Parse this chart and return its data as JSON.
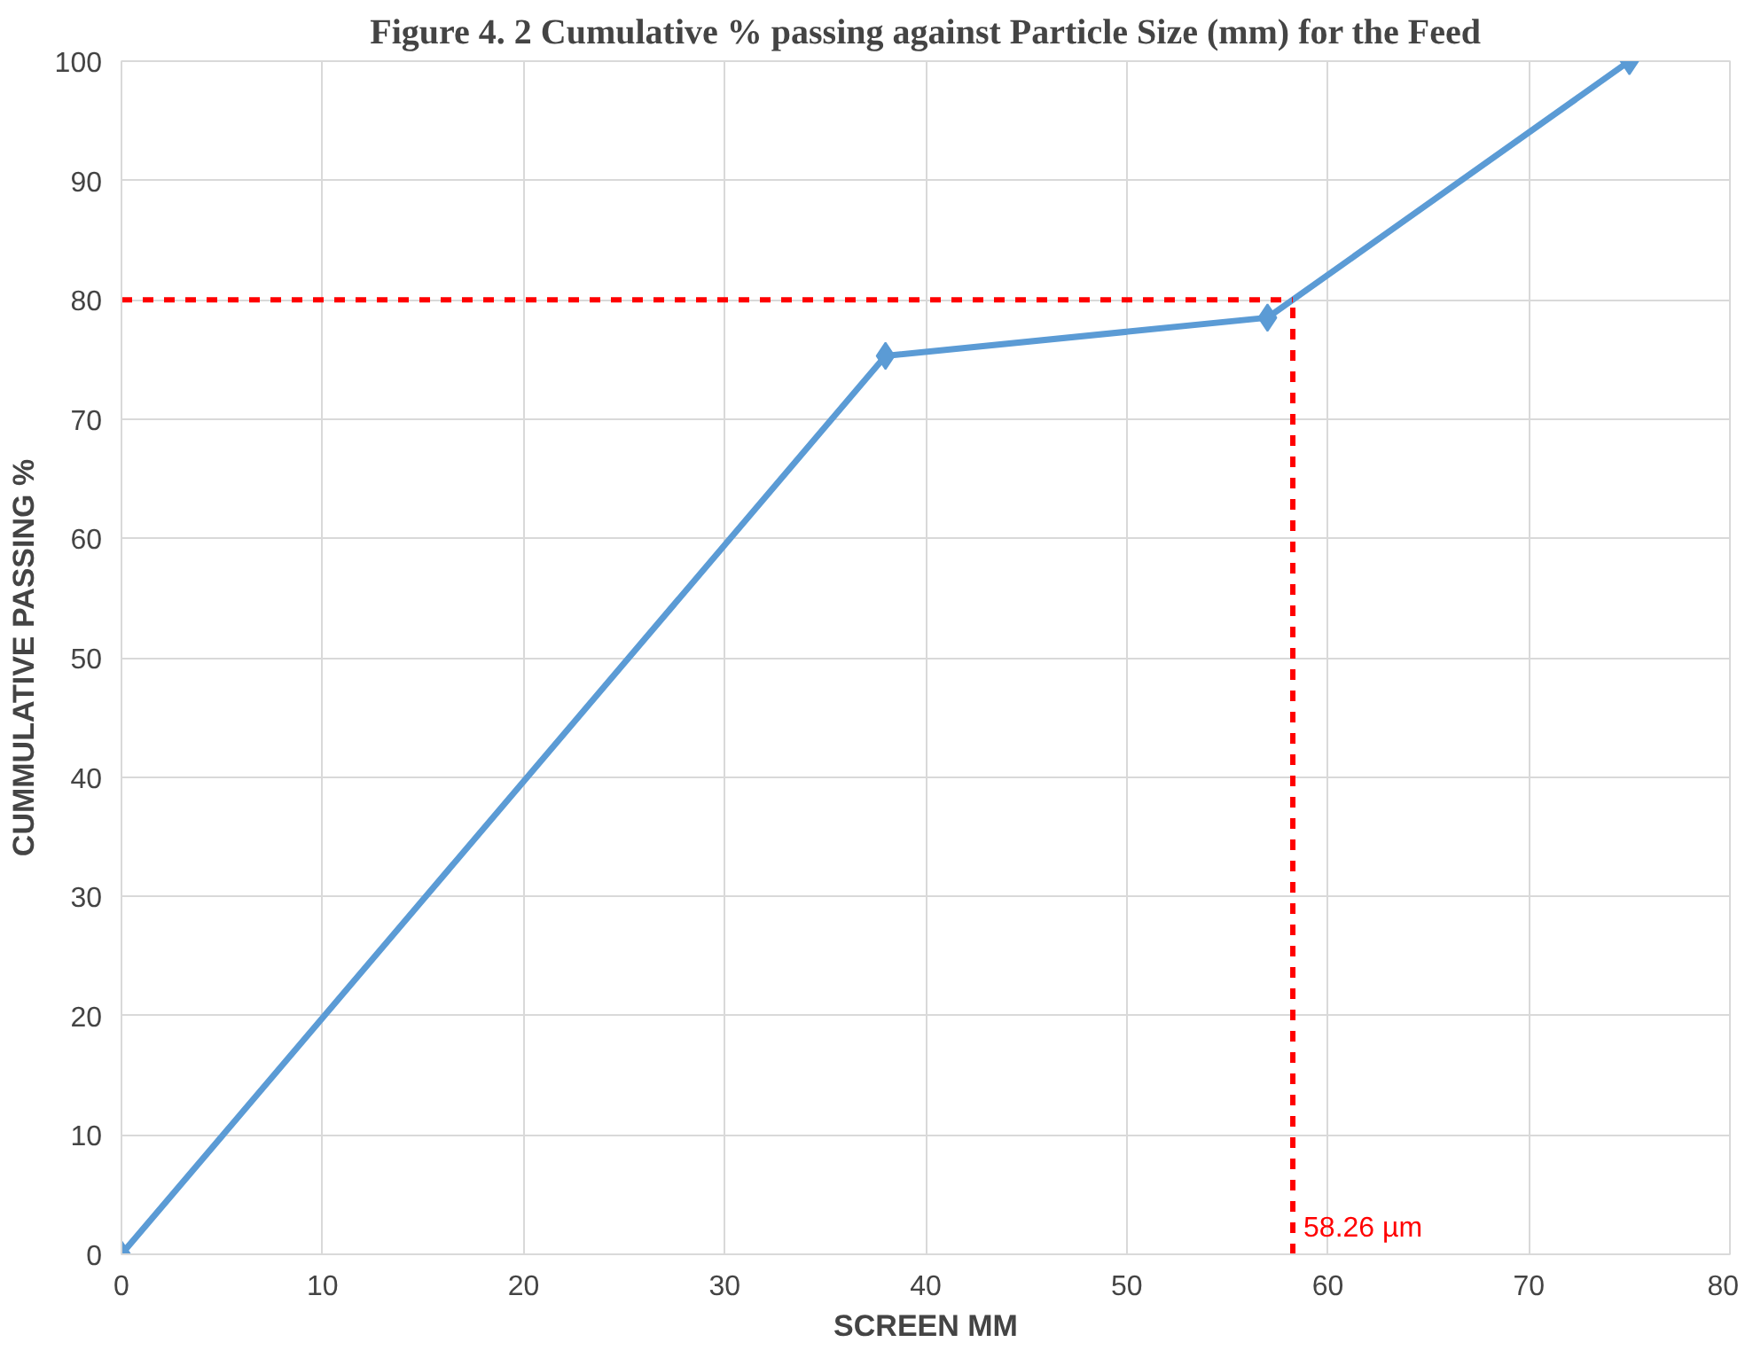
{
  "chart_data": {
    "type": "line",
    "title": "Figure 4. 2 Cumulative % passing against Particle Size (mm) for the Feed",
    "xlabel": "SCREEN MM",
    "ylabel": "CUMMULATIVE PASSING %",
    "x": [
      0,
      38,
      57,
      75
    ],
    "series": [
      {
        "color": "#5b9bd5",
        "values": [
          0,
          75.3,
          78.5,
          100
        ]
      }
    ],
    "marker": "diamond",
    "line_style": "solid",
    "grid": true,
    "xlim": [
      0,
      80
    ],
    "xticks": [
      0,
      10,
      20,
      30,
      40,
      50,
      60,
      70,
      80
    ],
    "ylim": [
      0,
      100
    ],
    "yticks": [
      0,
      10,
      20,
      30,
      40,
      50,
      60,
      70,
      80,
      90,
      100
    ],
    "ref_lines": [
      {
        "axis": "y",
        "value": 80,
        "color": "#ff0000",
        "line_style": "dashed"
      },
      {
        "axis": "x",
        "value": 58.26,
        "label": "58.26 µm",
        "color": "#ff0000",
        "line_style": "dashed"
      }
    ]
  }
}
